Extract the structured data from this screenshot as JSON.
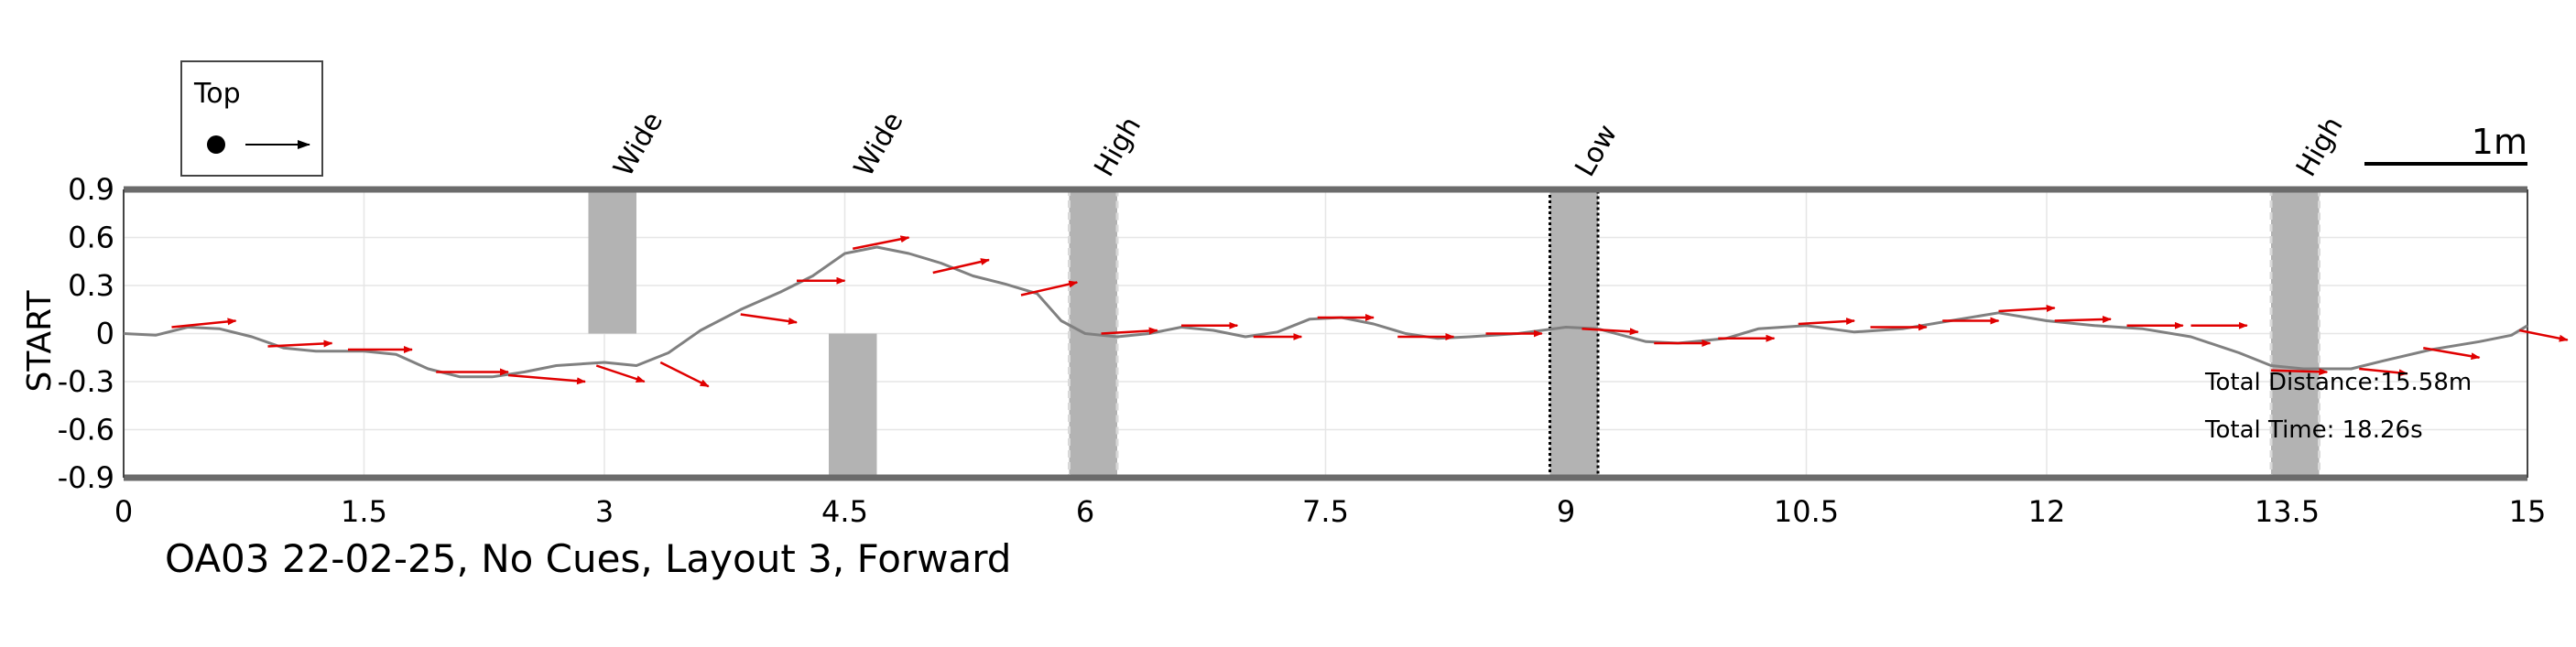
{
  "chart_data": {
    "type": "line",
    "title": "OA03 22-02-25, No Cues, Layout 3, Forward",
    "ylabel": "START",
    "xlabel": "",
    "xlim": [
      0,
      15
    ],
    "ylim": [
      -0.9,
      0.9
    ],
    "xticks": [
      "0",
      "1.5",
      "3",
      "4.5",
      "6",
      "7.5",
      "9",
      "10.5",
      "12",
      "13.5",
      "15"
    ],
    "xtick_values": [
      0,
      1.5,
      3,
      4.5,
      6,
      7.5,
      9,
      10.5,
      12,
      13.5,
      15
    ],
    "yticks": [
      "0.9",
      "0.6",
      "0.3",
      "0",
      "-0.3",
      "-0.6",
      "-0.9"
    ],
    "ytick_values": [
      0.9,
      0.6,
      0.3,
      0,
      -0.3,
      -0.6,
      -0.9
    ],
    "grid": true,
    "legend": {
      "label": "Top",
      "placement": "top-left"
    },
    "scale_bar": {
      "label": "1m",
      "length_m": 1
    },
    "stats": [
      {
        "label": "Total Distance:15.58m"
      },
      {
        "label": "Total Time: 18.26s"
      }
    ],
    "obstacles": [
      {
        "label": "Wide",
        "x": [
          2.9,
          3.2
        ],
        "y": [
          0,
          0.9
        ],
        "style": "solid"
      },
      {
        "label": "Wide",
        "x": [
          4.4,
          4.7
        ],
        "y": [
          -0.9,
          0
        ],
        "style": "solid"
      },
      {
        "label": "High",
        "x": [
          5.9,
          6.2
        ],
        "y": [
          -0.9,
          0.9
        ],
        "style": "dashed"
      },
      {
        "label": "Low",
        "x": [
          8.9,
          9.2
        ],
        "y": [
          -0.9,
          0.9
        ],
        "style": "dotted"
      },
      {
        "label": "High",
        "x": [
          13.4,
          13.7
        ],
        "y": [
          -0.9,
          0.9
        ],
        "style": "dashed"
      }
    ],
    "series": [
      {
        "path": [
          [
            0,
            0
          ],
          [
            0.2,
            -0.01
          ],
          [
            0.4,
            0.04
          ],
          [
            0.6,
            0.03
          ],
          [
            0.8,
            -0.02
          ],
          [
            1.0,
            -0.09
          ],
          [
            1.2,
            -0.11
          ],
          [
            1.5,
            -0.11
          ],
          [
            1.7,
            -0.13
          ],
          [
            1.9,
            -0.22
          ],
          [
            2.1,
            -0.27
          ],
          [
            2.3,
            -0.27
          ],
          [
            2.5,
            -0.24
          ],
          [
            2.7,
            -0.2
          ],
          [
            3.0,
            -0.18
          ],
          [
            3.2,
            -0.2
          ],
          [
            3.4,
            -0.12
          ],
          [
            3.6,
            0.02
          ],
          [
            3.85,
            0.15
          ],
          [
            4.1,
            0.26
          ],
          [
            4.3,
            0.36
          ],
          [
            4.5,
            0.5
          ],
          [
            4.7,
            0.54
          ],
          [
            4.9,
            0.5
          ],
          [
            5.1,
            0.44
          ],
          [
            5.3,
            0.36
          ],
          [
            5.5,
            0.31
          ],
          [
            5.7,
            0.25
          ],
          [
            5.85,
            0.08
          ],
          [
            6.0,
            0
          ],
          [
            6.2,
            -0.02
          ],
          [
            6.4,
            0.0
          ],
          [
            6.6,
            0.04
          ],
          [
            6.8,
            0.02
          ],
          [
            7.0,
            -0.02
          ],
          [
            7.2,
            0.01
          ],
          [
            7.4,
            0.09
          ],
          [
            7.6,
            0.1
          ],
          [
            7.8,
            0.06
          ],
          [
            8.0,
            0.0
          ],
          [
            8.2,
            -0.03
          ],
          [
            8.4,
            -0.02
          ],
          [
            8.7,
            0.0
          ],
          [
            9.0,
            0.04
          ],
          [
            9.2,
            0.03
          ],
          [
            9.5,
            -0.05
          ],
          [
            9.7,
            -0.06
          ],
          [
            10.0,
            -0.03
          ],
          [
            10.2,
            0.03
          ],
          [
            10.5,
            0.05
          ],
          [
            10.8,
            0.01
          ],
          [
            11.1,
            0.03
          ],
          [
            11.4,
            0.08
          ],
          [
            11.7,
            0.13
          ],
          [
            12.0,
            0.08
          ],
          [
            12.3,
            0.05
          ],
          [
            12.6,
            0.03
          ],
          [
            12.9,
            -0.02
          ],
          [
            13.2,
            -0.12
          ],
          [
            13.4,
            -0.2
          ],
          [
            13.6,
            -0.22
          ],
          [
            13.9,
            -0.22
          ],
          [
            14.1,
            -0.17
          ],
          [
            14.4,
            -0.1
          ],
          [
            14.7,
            -0.05
          ],
          [
            14.9,
            -0.01
          ],
          [
            15.0,
            0.05
          ]
        ],
        "color": "#808080"
      }
    ],
    "arrows": [
      [
        0.3,
        0.04,
        0.4,
        0.04
      ],
      [
        0.9,
        -0.08,
        0.4,
        0.02
      ],
      [
        1.4,
        -0.1,
        0.4,
        0.0
      ],
      [
        1.95,
        -0.24,
        0.45,
        0.0
      ],
      [
        2.4,
        -0.26,
        0.48,
        -0.04
      ],
      [
        2.95,
        -0.2,
        0.3,
        -0.1
      ],
      [
        3.35,
        -0.18,
        0.3,
        -0.15
      ],
      [
        3.85,
        0.12,
        0.35,
        -0.05
      ],
      [
        4.2,
        0.33,
        0.3,
        0.0
      ],
      [
        4.55,
        0.53,
        0.35,
        0.07
      ],
      [
        5.05,
        0.38,
        0.35,
        0.08
      ],
      [
        5.6,
        0.24,
        0.35,
        0.08
      ],
      [
        6.1,
        0.0,
        0.35,
        0.02
      ],
      [
        6.6,
        0.05,
        0.35,
        0.0
      ],
      [
        7.05,
        -0.02,
        0.3,
        0.0
      ],
      [
        7.45,
        0.1,
        0.35,
        0.0
      ],
      [
        7.95,
        -0.02,
        0.35,
        0.0
      ],
      [
        8.5,
        0.0,
        0.35,
        0.0
      ],
      [
        9.1,
        0.03,
        0.35,
        -0.02
      ],
      [
        9.55,
        -0.06,
        0.35,
        0.0
      ],
      [
        9.95,
        -0.03,
        0.35,
        0.0
      ],
      [
        10.45,
        0.06,
        0.35,
        0.02
      ],
      [
        10.9,
        0.04,
        0.35,
        0.0
      ],
      [
        11.35,
        0.08,
        0.35,
        0.0
      ],
      [
        11.7,
        0.14,
        0.35,
        0.02
      ],
      [
        12.05,
        0.08,
        0.35,
        0.01
      ],
      [
        12.5,
        0.05,
        0.35,
        0.0
      ],
      [
        12.9,
        0.05,
        0.35,
        0.0
      ],
      [
        13.4,
        -0.23,
        0.35,
        -0.01
      ],
      [
        13.95,
        -0.22,
        0.3,
        -0.03
      ],
      [
        14.35,
        -0.09,
        0.35,
        -0.06
      ],
      [
        14.95,
        0.02,
        0.3,
        -0.06
      ]
    ]
  }
}
